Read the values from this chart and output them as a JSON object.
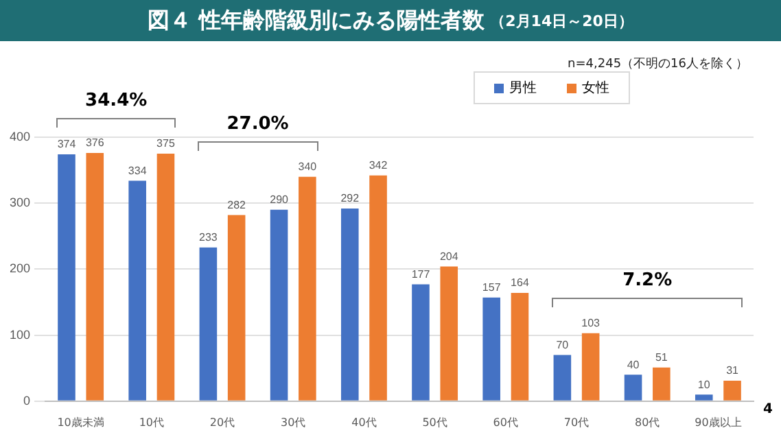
{
  "chart_data": {
    "type": "bar",
    "title": "図４ 性年齢階級別にみる陽性者数",
    "subtitle": "（2月14日～20日）",
    "categories": [
      "10歳未満",
      "10代",
      "20代",
      "30代",
      "40代",
      "50代",
      "60代",
      "70代",
      "80代",
      "90歳以上"
    ],
    "series": [
      {
        "name": "男性",
        "color": "#4472c4",
        "values": [
          374,
          334,
          233,
          290,
          292,
          177,
          157,
          70,
          40,
          10
        ]
      },
      {
        "name": "女性",
        "color": "#ed7d31",
        "values": [
          376,
          375,
          282,
          340,
          342,
          204,
          164,
          103,
          51,
          31
        ]
      }
    ],
    "ylim": [
      0,
      400
    ],
    "yticks": [
      0,
      100,
      200,
      300,
      400
    ],
    "grid": "y",
    "legend": "top right",
    "data_labels": true,
    "annotations": [
      "n=4,245（不明の16人を除く）",
      "34.4%",
      "27.0%",
      "7.2%",
      "4"
    ]
  }
}
